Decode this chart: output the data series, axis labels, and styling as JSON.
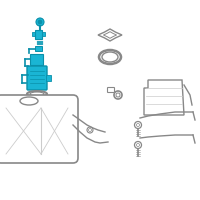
{
  "bg": "#ffffff",
  "tc": "#1ab5d4",
  "td": "#0a90aa",
  "gc": "#aaaaaa",
  "gd": "#888888",
  "lc": "#cccccc",
  "figsize": [
    2.0,
    2.0
  ],
  "dpi": 100
}
